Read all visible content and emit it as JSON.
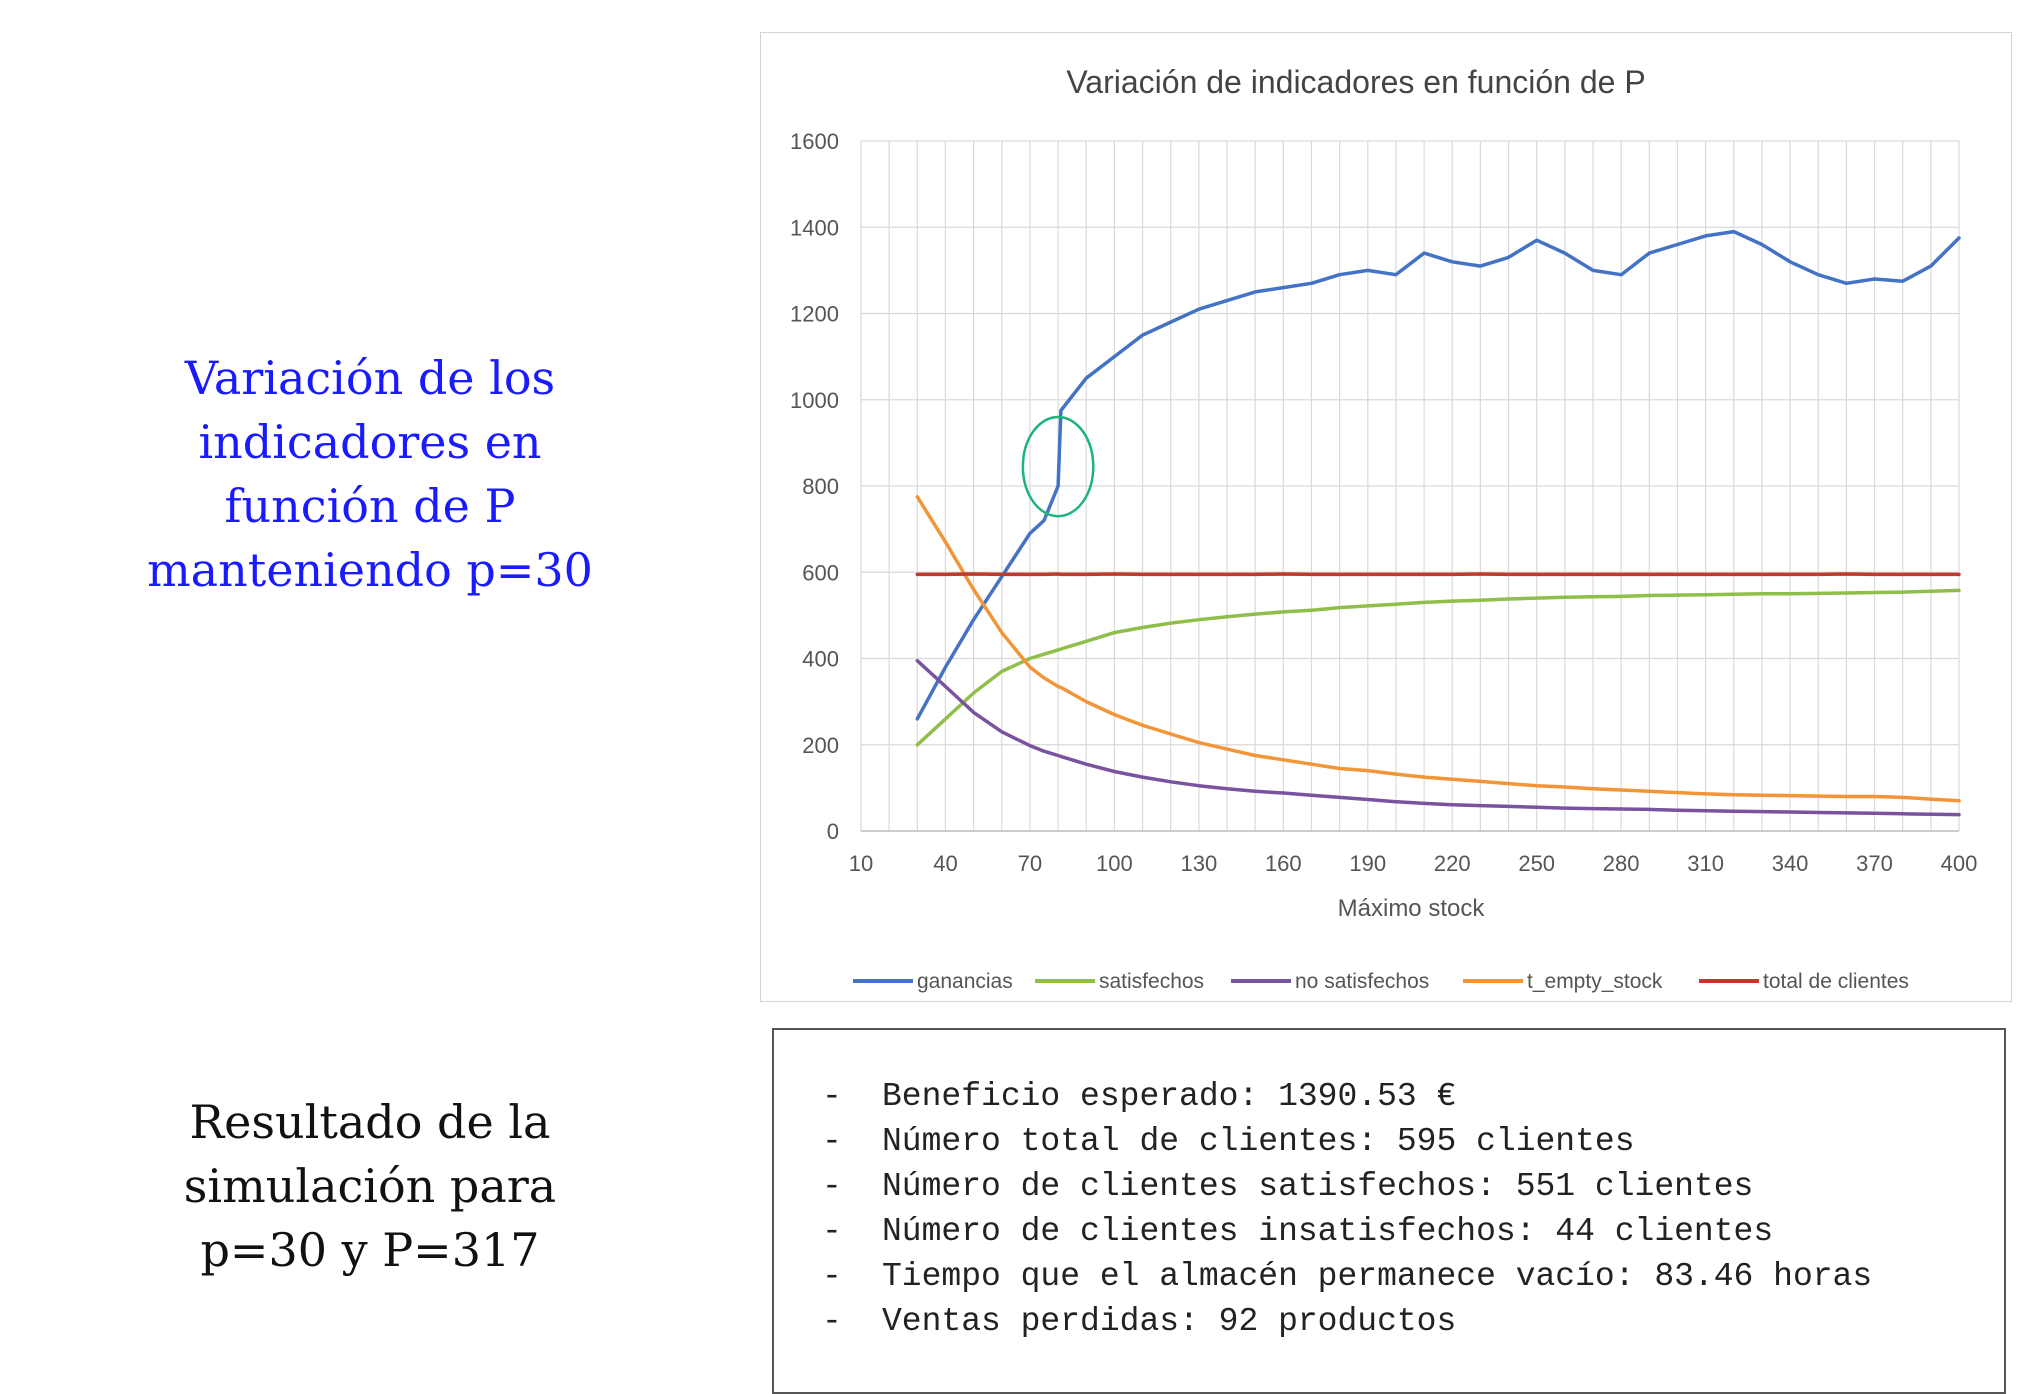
{
  "caption_top": {
    "lines": [
      "Variación de los",
      "indicadores en",
      "función de P",
      "manteniendo p=30"
    ]
  },
  "caption_bottom": {
    "lines": [
      "Resultado de la",
      "simulación para",
      "p=30 y P=317"
    ]
  },
  "colors": {
    "ganancias": "#4472c4",
    "satisfechos": "#8fbf4a",
    "no_satisfechos": "#7952a0",
    "t_empty_stock": "#f29537",
    "total_de_clientes": "#c0392b",
    "highlight": "#1db37a",
    "caption_blue": "#1a1aff"
  },
  "chart_data": {
    "type": "line",
    "title": "Variación de indicadores en función de P",
    "xlabel": "Máximo stock",
    "ylabel": "",
    "xlim": [
      10,
      400
    ],
    "ylim": [
      0,
      1600
    ],
    "xticks": [
      10,
      40,
      70,
      100,
      130,
      160,
      190,
      220,
      250,
      280,
      310,
      340,
      370,
      400
    ],
    "yticks": [
      0,
      200,
      400,
      600,
      800,
      1000,
      1200,
      1400,
      1600
    ],
    "grid": true,
    "legend_position": "bottom",
    "x": [
      30,
      40,
      50,
      60,
      70,
      75,
      80,
      81,
      90,
      100,
      110,
      120,
      130,
      140,
      150,
      160,
      170,
      180,
      190,
      200,
      210,
      220,
      230,
      240,
      250,
      260,
      270,
      280,
      290,
      300,
      310,
      320,
      330,
      340,
      350,
      360,
      370,
      380,
      390,
      400
    ],
    "series": [
      {
        "name": "ganancias",
        "key": "ganancias",
        "values": [
          260,
          380,
          490,
          590,
          690,
          720,
          800,
          975,
          1050,
          1100,
          1150,
          1180,
          1210,
          1230,
          1250,
          1260,
          1270,
          1290,
          1300,
          1290,
          1340,
          1320,
          1310,
          1330,
          1370,
          1340,
          1300,
          1290,
          1340,
          1360,
          1380,
          1390,
          1360,
          1320,
          1290,
          1270,
          1280,
          1275,
          1310,
          1375
        ]
      },
      {
        "name": "satisfechos",
        "key": "satisfechos",
        "values": [
          200,
          260,
          320,
          370,
          400,
          410,
          420,
          422,
          440,
          460,
          472,
          482,
          490,
          497,
          503,
          508,
          512,
          518,
          522,
          526,
          530,
          533,
          535,
          538,
          540,
          542,
          543,
          544,
          546,
          547,
          548,
          549,
          550,
          550,
          551,
          552,
          553,
          554,
          556,
          558
        ]
      },
      {
        "name": "no satisfechos",
        "key": "no_satisfechos",
        "values": [
          395,
          335,
          275,
          230,
          198,
          185,
          175,
          173,
          155,
          138,
          125,
          114,
          105,
          98,
          92,
          88,
          83,
          78,
          73,
          68,
          64,
          61,
          59,
          57,
          55,
          53,
          52,
          51,
          50,
          48,
          47,
          46,
          45,
          44,
          43,
          42,
          41,
          40,
          39,
          38
        ]
      },
      {
        "name": "t_empty_stock",
        "key": "t_empty_stock",
        "values": [
          775,
          670,
          560,
          460,
          380,
          355,
          335,
          333,
          300,
          270,
          245,
          225,
          205,
          190,
          175,
          165,
          155,
          145,
          140,
          132,
          125,
          120,
          115,
          110,
          105,
          102,
          98,
          95,
          92,
          89,
          86,
          84,
          83,
          82,
          81,
          80,
          80,
          78,
          74,
          70
        ]
      },
      {
        "name": "total de clientes",
        "key": "total_de_clientes",
        "values": [
          595,
          595,
          596,
          595,
          595,
          595,
          596,
          595,
          595,
          596,
          595,
          595,
          595,
          595,
          595,
          596,
          595,
          595,
          595,
          595,
          595,
          595,
          596,
          595,
          595,
          595,
          595,
          595,
          595,
          595,
          595,
          595,
          595,
          595,
          595,
          596,
          595,
          595,
          595,
          595
        ]
      }
    ],
    "annotation": {
      "shape": "ellipse",
      "cx": 80,
      "cy": 845,
      "rx": 12.5,
      "ry": 115
    }
  },
  "results": {
    "bullet": "-",
    "items": [
      "Beneficio esperado: 1390.53 €",
      "Número total de clientes: 595 clientes",
      "Número de clientes satisfechos: 551 clientes",
      "Número de clientes insatisfechos: 44 clientes",
      "Tiempo que el almacén permanece vacío: 83.46 horas",
      "Ventas perdidas: 92 productos"
    ]
  }
}
